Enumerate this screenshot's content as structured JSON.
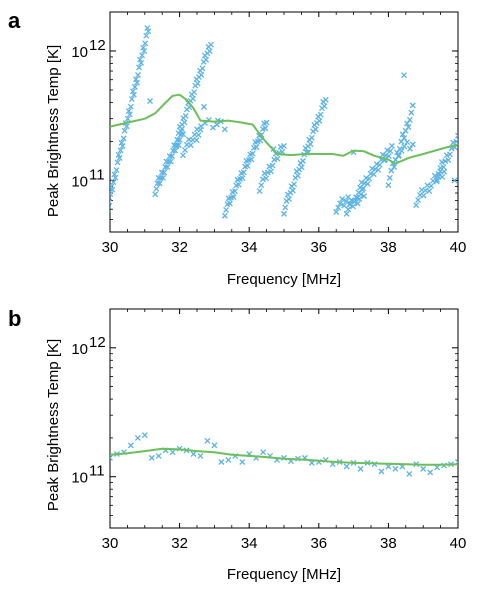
{
  "chart_data": [
    {
      "panel": "a",
      "type": "scatter",
      "xlabel": "Frequency [MHz]",
      "ylabel": "Peak Brightness Temp [K]",
      "xlim": [
        30,
        40
      ],
      "ylim": [
        40000000000,
        2000000000000
      ],
      "y_scale": "log",
      "x_ticks": [
        30,
        32,
        34,
        36,
        38,
        40
      ],
      "x_tick_labels": [
        "30",
        "32",
        "34",
        "36",
        "38",
        "40"
      ],
      "y_ticks": [
        100000000000,
        1000000000000
      ],
      "y_tick_labels": [
        {
          "base": "10",
          "exp": "11"
        },
        {
          "base": "10",
          "exp": "12"
        }
      ],
      "series": [
        {
          "kind": "scatter",
          "marker": "x",
          "color": "#5bb3e6",
          "segments": [
            {
              "x0": 29.95,
              "x1": 31.1,
              "y0": 65000000000,
              "y1": 1500000000000,
              "n": 40
            },
            {
              "x0": 31.3,
              "x1": 32.1,
              "y0": 85000000000,
              "y1": 240000000000,
              "n": 26
            },
            {
              "x0": 31.9,
              "x1": 32.9,
              "y0": 200000000000,
              "y1": 1150000000000,
              "n": 30
            },
            {
              "x0": 32.1,
              "x1": 32.6,
              "y0": 170000000000,
              "y1": 240000000000,
              "n": 10
            },
            {
              "x0": 32.5,
              "x1": 33.3,
              "y0": 270000000000,
              "y1": 270000000000,
              "n": 8
            },
            {
              "x0": 33.3,
              "x1": 34.5,
              "y0": 58000000000,
              "y1": 280000000000,
              "n": 34
            },
            {
              "x0": 34.3,
              "x1": 35.0,
              "y0": 90000000000,
              "y1": 190000000000,
              "n": 16
            },
            {
              "x0": 35.0,
              "x1": 36.2,
              "y0": 60000000000,
              "y1": 420000000000,
              "n": 34
            },
            {
              "x0": 36.5,
              "x1": 36.9,
              "y0": 62000000000,
              "y1": 72000000000,
              "n": 8
            },
            {
              "x0": 36.8,
              "x1": 37.3,
              "y0": 60000000000,
              "y1": 80000000000,
              "n": 12
            },
            {
              "x0": 37.1,
              "x1": 38.1,
              "y0": 80000000000,
              "y1": 180000000000,
              "n": 24
            },
            {
              "x0": 38.0,
              "x1": 38.7,
              "y0": 100000000000,
              "y1": 350000000000,
              "n": 18
            },
            {
              "x0": 38.3,
              "x1": 38.7,
              "y0": 170000000000,
              "y1": 190000000000,
              "n": 6
            },
            {
              "x0": 38.8,
              "x1": 39.6,
              "y0": 70000000000,
              "y1": 120000000000,
              "n": 16
            },
            {
              "x0": 39.4,
              "x1": 40.0,
              "y0": 110000000000,
              "y1": 210000000000,
              "n": 14
            }
          ],
          "extra_points": [
            [
              31.15,
              410000000000
            ],
            [
              32.7,
              370000000000
            ],
            [
              33.1,
              290000000000
            ],
            [
              34.7,
              175000000000
            ],
            [
              35.7,
              165000000000
            ],
            [
              37.0,
              165000000000
            ],
            [
              37.9,
              145000000000
            ],
            [
              38.45,
              650000000000
            ],
            [
              39.9,
              100000000000
            ]
          ]
        },
        {
          "kind": "line",
          "color": "#6cbf5b",
          "x": [
            30.0,
            30.5,
            31.0,
            31.3,
            31.6,
            31.8,
            32.0,
            32.2,
            32.4,
            32.6,
            33.0,
            33.4,
            33.8,
            34.1,
            34.4,
            34.8,
            35.2,
            35.6,
            36.0,
            36.4,
            36.7,
            37.0,
            37.3,
            37.6,
            38.0,
            38.2,
            38.6,
            39.0,
            39.5,
            40.0
          ],
          "y": [
            260000000000,
            280000000000,
            300000000000,
            330000000000,
            400000000000,
            450000000000,
            460000000000,
            420000000000,
            360000000000,
            290000000000,
            285000000000,
            290000000000,
            280000000000,
            270000000000,
            210000000000,
            160000000000,
            157000000000,
            160000000000,
            160000000000,
            160000000000,
            155000000000,
            170000000000,
            168000000000,
            155000000000,
            145000000000,
            135000000000,
            150000000000,
            160000000000,
            175000000000,
            190000000000
          ]
        }
      ]
    },
    {
      "panel": "b",
      "type": "scatter",
      "xlabel": "Frequency [MHz]",
      "ylabel": "Peak Brightness Temp [K]",
      "xlim": [
        30,
        40
      ],
      "ylim": [
        40000000000,
        2000000000000
      ],
      "y_scale": "log",
      "x_ticks": [
        30,
        32,
        34,
        36,
        38,
        40
      ],
      "x_tick_labels": [
        "30",
        "32",
        "34",
        "36",
        "38",
        "40"
      ],
      "y_ticks": [
        100000000000,
        1000000000000
      ],
      "y_tick_labels": [
        {
          "base": "10",
          "exp": "11"
        },
        {
          "base": "10",
          "exp": "12"
        }
      ],
      "series": [
        {
          "kind": "scatter",
          "marker": "x",
          "color": "#5bb3e6",
          "x": [
            30.0,
            30.2,
            30.4,
            30.6,
            30.8,
            31.0,
            31.2,
            31.4,
            31.6,
            31.8,
            32.0,
            32.2,
            32.4,
            32.6,
            32.8,
            33.0,
            33.2,
            33.4,
            33.6,
            33.8,
            34.0,
            34.2,
            34.4,
            34.6,
            34.8,
            35.0,
            35.2,
            35.4,
            35.6,
            35.8,
            36.0,
            36.2,
            36.4,
            36.6,
            36.8,
            37.0,
            37.2,
            37.4,
            37.6,
            37.8,
            38.0,
            38.2,
            38.4,
            38.6,
            38.8,
            39.0,
            39.2,
            39.4,
            39.6,
            39.8,
            40.0
          ],
          "y": [
            140000000000,
            150000000000,
            155000000000,
            175000000000,
            200000000000,
            210000000000,
            140000000000,
            145000000000,
            160000000000,
            155000000000,
            165000000000,
            160000000000,
            150000000000,
            145000000000,
            190000000000,
            175000000000,
            130000000000,
            135000000000,
            145000000000,
            130000000000,
            150000000000,
            140000000000,
            155000000000,
            145000000000,
            135000000000,
            140000000000,
            132000000000,
            138000000000,
            140000000000,
            128000000000,
            130000000000,
            135000000000,
            125000000000,
            130000000000,
            120000000000,
            128000000000,
            115000000000,
            128000000000,
            125000000000,
            110000000000,
            120000000000,
            115000000000,
            120000000000,
            105000000000,
            125000000000,
            115000000000,
            108000000000,
            118000000000,
            122000000000,
            125000000000,
            130000000000
          ]
        },
        {
          "kind": "line",
          "color": "#6cbf5b",
          "x": [
            30.0,
            30.5,
            31.0,
            31.5,
            32.0,
            32.5,
            33.0,
            33.5,
            34.0,
            34.5,
            35.0,
            35.5,
            36.0,
            36.5,
            37.0,
            37.5,
            38.0,
            38.5,
            39.0,
            39.5,
            40.0
          ],
          "y": [
            148000000000,
            152000000000,
            158000000000,
            165000000000,
            163000000000,
            158000000000,
            155000000000,
            148000000000,
            145000000000,
            142000000000,
            138000000000,
            136000000000,
            133000000000,
            130000000000,
            128000000000,
            127000000000,
            126000000000,
            125000000000,
            124000000000,
            124000000000,
            125000000000
          ]
        }
      ]
    }
  ]
}
